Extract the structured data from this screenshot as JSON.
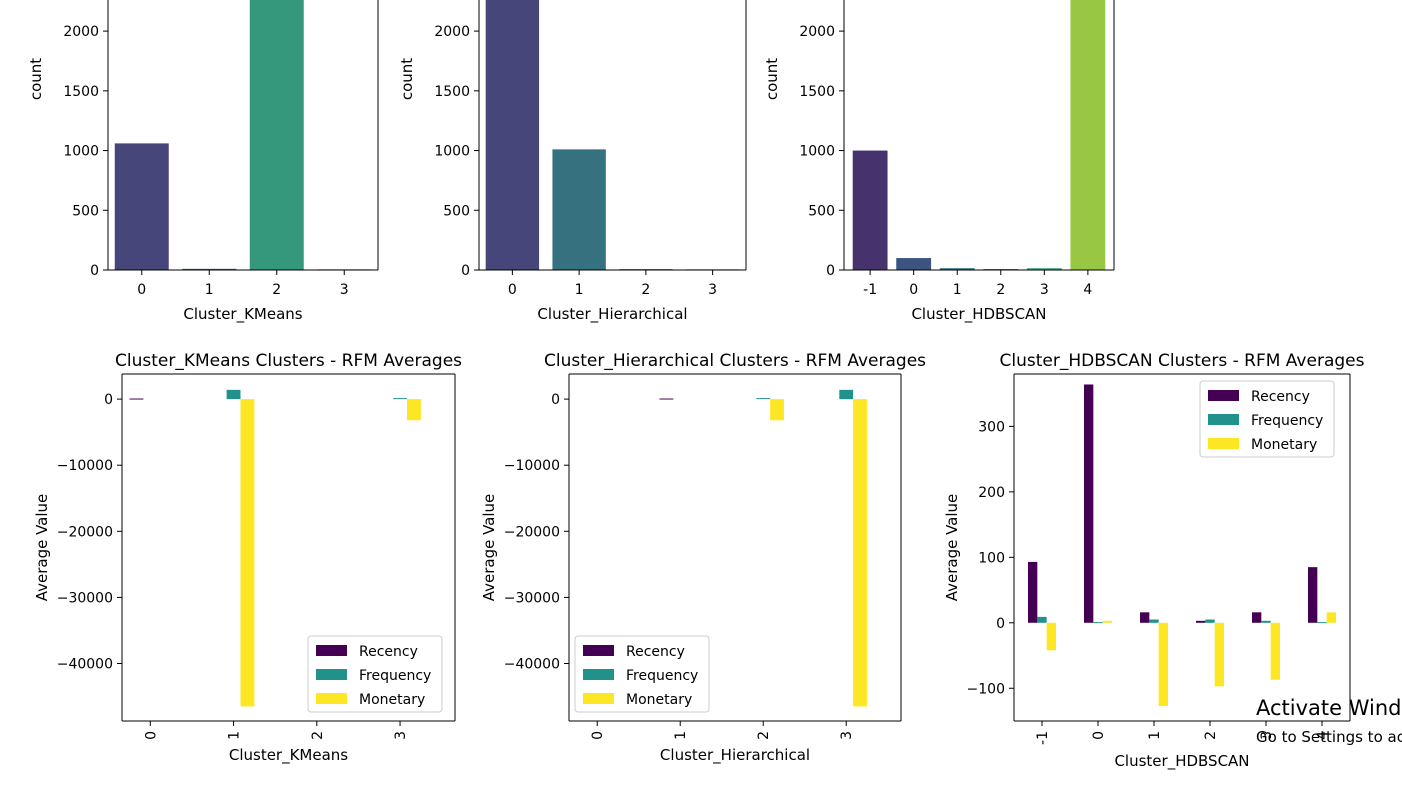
{
  "chart_data": [
    {
      "type": "bar",
      "xlabel": "Cluster_KMeans",
      "ylabel": "count",
      "categories": [
        "0",
        "1",
        "2",
        "3"
      ],
      "values": [
        1060,
        10,
        2300,
        6
      ],
      "colors": [
        "#46467b",
        "#2d708e",
        "#35977b",
        "#7ab94e"
      ],
      "yticks": [
        0,
        500,
        1000,
        1500,
        2000
      ]
    },
    {
      "type": "bar",
      "xlabel": "Cluster_Hierarchical",
      "ylabel": "count",
      "categories": [
        "0",
        "1",
        "2",
        "3"
      ],
      "values": [
        2300,
        1010,
        8,
        6
      ],
      "colors": [
        "#46467b",
        "#35717f",
        "#3a9b7f",
        "#7ab94e"
      ],
      "yticks": [
        0,
        500,
        1000,
        1500,
        2000
      ]
    },
    {
      "type": "bar",
      "xlabel": "Cluster_HDBSCAN",
      "ylabel": "count",
      "categories": [
        "-1",
        "0",
        "1",
        "2",
        "3",
        "4"
      ],
      "values": [
        1000,
        100,
        15,
        8,
        15,
        2300
      ],
      "colors": [
        "#46336e",
        "#3d5480",
        "#2e6f84",
        "#2b8f88",
        "#37a77a",
        "#98c744"
      ],
      "yticks": [
        0,
        500,
        1000,
        1500,
        2000
      ]
    },
    {
      "type": "bar",
      "title": "Cluster_KMeans Clusters - RFM Averages",
      "xlabel": "Cluster_KMeans",
      "ylabel": "Average Value",
      "categories": [
        "0",
        "1",
        "2",
        "3"
      ],
      "series": [
        {
          "name": "Recency",
          "values": [
            90,
            10,
            0,
            20
          ]
        },
        {
          "name": "Frequency",
          "values": [
            5,
            1400,
            0,
            150
          ]
        },
        {
          "name": "Monetary",
          "values": [
            0,
            -46500,
            0,
            -3200
          ]
        }
      ],
      "ylim": [
        -48700,
        3800
      ],
      "yticks": [
        0,
        -10000,
        -20000,
        -30000,
        -40000
      ],
      "ytick_labels": [
        "0",
        "−10000",
        "−20000",
        "−30000",
        "−40000"
      ],
      "legend": "lower-right"
    },
    {
      "type": "bar",
      "title": "Cluster_Hierarchical Clusters - RFM Averages",
      "xlabel": "Cluster_Hierarchical",
      "ylabel": "Average Value",
      "categories": [
        "0",
        "1",
        "2",
        "3"
      ],
      "series": [
        {
          "name": "Recency",
          "values": [
            0,
            90,
            15,
            20
          ]
        },
        {
          "name": "Frequency",
          "values": [
            0,
            5,
            150,
            1400
          ]
        },
        {
          "name": "Monetary",
          "values": [
            0,
            0,
            -3200,
            -46500
          ]
        }
      ],
      "ylim": [
        -48700,
        3800
      ],
      "yticks": [
        0,
        -10000,
        -20000,
        -30000,
        -40000
      ],
      "ytick_labels": [
        "0",
        "−10000",
        "−20000",
        "−30000",
        "−40000"
      ],
      "legend": "lower-left"
    },
    {
      "type": "bar",
      "title": "Cluster_HDBSCAN Clusters - RFM Averages",
      "xlabel": "Cluster_HDBSCAN",
      "ylabel": "Average Value",
      "categories": [
        "-1",
        "0",
        "1",
        "2",
        "3",
        "4"
      ],
      "series": [
        {
          "name": "Recency",
          "values": [
            93,
            364,
            16,
            3,
            16,
            85
          ]
        },
        {
          "name": "Frequency",
          "values": [
            9,
            1,
            5,
            5,
            3,
            1
          ]
        },
        {
          "name": "Monetary",
          "values": [
            -42,
            3,
            -127,
            -97,
            -87,
            16
          ]
        }
      ],
      "ylim": [
        -150,
        380
      ],
      "yticks": [
        300,
        200,
        100,
        0,
        -100
      ],
      "ytick_labels": [
        "300",
        "200",
        "100",
        "0",
        "−100"
      ],
      "legend": "upper-right"
    }
  ],
  "series_colors": {
    "Recency": "#440154",
    "Frequency": "#21918c",
    "Monetary": "#fde725"
  },
  "watermark": {
    "line1": "Activate Windows",
    "line2": "Go to Settings to activate Windows."
  }
}
